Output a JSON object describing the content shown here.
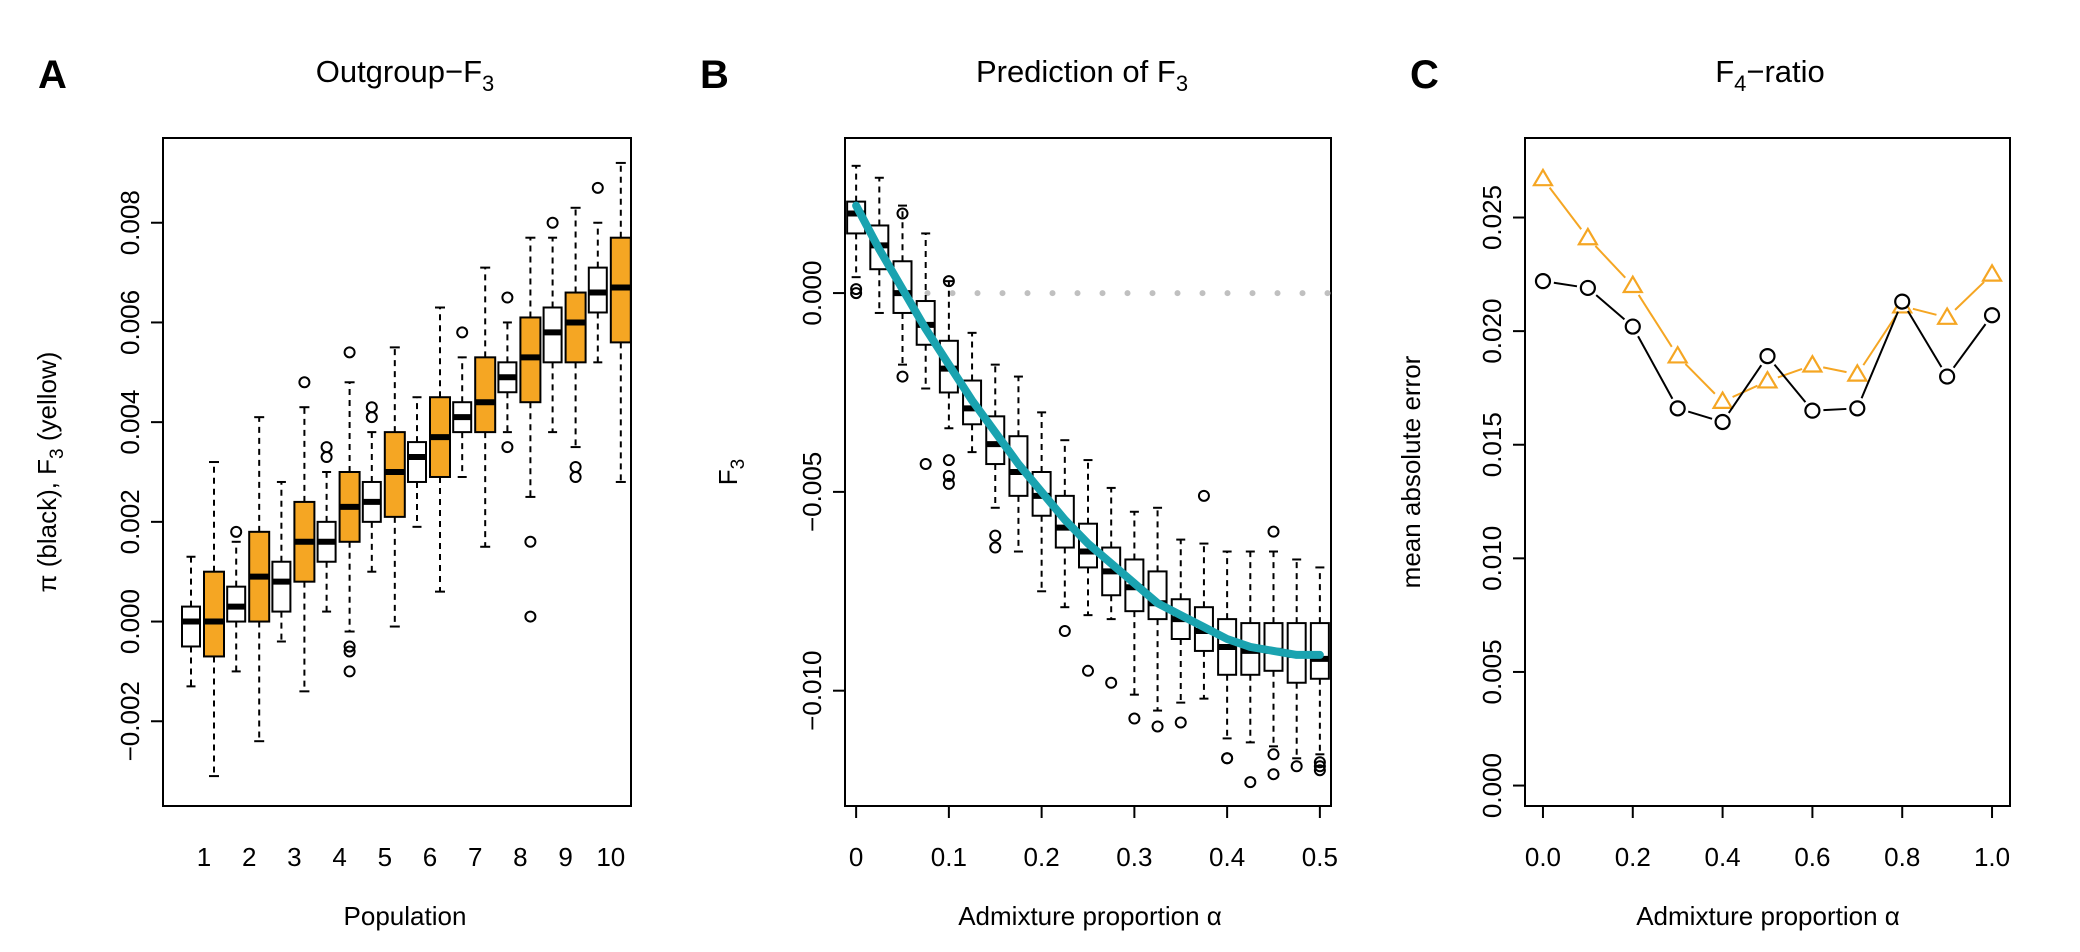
{
  "figure": {
    "colors": {
      "ink": "#000000",
      "box_fill_white": "#ffffff",
      "box_fill_yellow": "#f5a623",
      "curve": "#1aa3b0",
      "zero_line": "#c0c0c0",
      "triangle_series": "#f5a623"
    }
  },
  "chart_data": [
    {
      "panel": "A",
      "type": "box",
      "title": "Outgroup−F",
      "title_sub": "3",
      "xlabel": "Population",
      "ylabel": "π (black), F",
      "ylabel_sub": "3",
      "ylabel_tail": " (yellow)",
      "ylim": [
        -0.0037,
        0.0097
      ],
      "y_ticks": [
        -0.002,
        0.0,
        0.002,
        0.004,
        0.006,
        0.008
      ],
      "y_tick_labels": [
        "−0.002",
        "0.000",
        "0.002",
        "0.004",
        "0.006",
        "0.008"
      ],
      "categories": [
        "1",
        "2",
        "3",
        "4",
        "5",
        "6",
        "7",
        "8",
        "9",
        "10"
      ],
      "series": [
        {
          "name": "π (black)",
          "fill": "white",
          "boxes": [
            {
              "min": -0.0013,
              "q1": -0.0005,
              "median": 0.0,
              "q3": 0.0003,
              "max": 0.0013,
              "outliers": []
            },
            {
              "min": -0.001,
              "q1": 0.0,
              "median": 0.0003,
              "q3": 0.0007,
              "max": 0.0016,
              "outliers": [
                0.0018
              ]
            },
            {
              "min": -0.0004,
              "q1": 0.0002,
              "median": 0.0008,
              "q3": 0.0012,
              "max": 0.0028,
              "outliers": []
            },
            {
              "min": 0.0002,
              "q1": 0.0012,
              "median": 0.0016,
              "q3": 0.002,
              "max": 0.003,
              "outliers": [
                0.0033,
                0.0035
              ]
            },
            {
              "min": 0.001,
              "q1": 0.002,
              "median": 0.0024,
              "q3": 0.0028,
              "max": 0.0038,
              "outliers": [
                0.0041,
                0.0043
              ]
            },
            {
              "min": 0.0019,
              "q1": 0.0028,
              "median": 0.0033,
              "q3": 0.0036,
              "max": 0.0045,
              "outliers": []
            },
            {
              "min": 0.0029,
              "q1": 0.0038,
              "median": 0.0041,
              "q3": 0.0044,
              "max": 0.0053,
              "outliers": [
                0.0058
              ]
            },
            {
              "min": 0.0038,
              "q1": 0.0046,
              "median": 0.0049,
              "q3": 0.0052,
              "max": 0.006,
              "outliers": [
                0.0035,
                0.0065
              ]
            },
            {
              "min": 0.0038,
              "q1": 0.0052,
              "median": 0.0058,
              "q3": 0.0063,
              "max": 0.0077,
              "outliers": [
                0.008
              ]
            },
            {
              "min": 0.0052,
              "q1": 0.0062,
              "median": 0.0066,
              "q3": 0.0071,
              "max": 0.008,
              "outliers": [
                0.0087
              ]
            }
          ]
        },
        {
          "name": "F3 (yellow)",
          "fill": "yellow",
          "boxes": [
            {
              "min": -0.0031,
              "q1": -0.0007,
              "median": 0.0,
              "q3": 0.001,
              "max": 0.0032,
              "outliers": []
            },
            {
              "min": -0.0024,
              "q1": 0.0,
              "median": 0.0009,
              "q3": 0.0018,
              "max": 0.0041,
              "outliers": []
            },
            {
              "min": -0.0014,
              "q1": 0.0008,
              "median": 0.0016,
              "q3": 0.0024,
              "max": 0.0043,
              "outliers": [
                0.0048
              ]
            },
            {
              "min": -0.0002,
              "q1": 0.0016,
              "median": 0.0023,
              "q3": 0.003,
              "max": 0.0048,
              "outliers": [
                -0.001,
                -0.0006,
                -0.0005,
                0.0054
              ]
            },
            {
              "min": -0.0001,
              "q1": 0.0021,
              "median": 0.003,
              "q3": 0.0038,
              "max": 0.0055,
              "outliers": []
            },
            {
              "min": 0.0006,
              "q1": 0.0029,
              "median": 0.0037,
              "q3": 0.0045,
              "max": 0.0063,
              "outliers": []
            },
            {
              "min": 0.0015,
              "q1": 0.0038,
              "median": 0.0044,
              "q3": 0.0053,
              "max": 0.0071,
              "outliers": []
            },
            {
              "min": 0.0025,
              "q1": 0.0044,
              "median": 0.0053,
              "q3": 0.0061,
              "max": 0.0077,
              "outliers": [
                0.0001,
                0.0016
              ]
            },
            {
              "min": 0.0035,
              "q1": 0.0052,
              "median": 0.006,
              "q3": 0.0066,
              "max": 0.0083,
              "outliers": [
                0.0029,
                0.0031
              ]
            },
            {
              "min": 0.0028,
              "q1": 0.0056,
              "median": 0.0067,
              "q3": 0.0077,
              "max": 0.0092,
              "outliers": []
            }
          ]
        }
      ]
    },
    {
      "panel": "B",
      "type": "box",
      "title": "Prediction of F",
      "title_sub": "3",
      "xlabel": "Admixture proportion  α",
      "ylabel": "F",
      "ylabel_sub": "3",
      "xlim": [
        -0.012,
        0.512
      ],
      "ylim": [
        -0.0129,
        0.0039
      ],
      "x_ticks": [
        0,
        0.1,
        0.2,
        0.3,
        0.4,
        0.5
      ],
      "x_tick_labels": [
        "0",
        "0.1",
        "0.2",
        "0.3",
        "0.4",
        "0.5"
      ],
      "y_ticks": [
        -0.01,
        -0.005,
        0.0
      ],
      "y_tick_labels": [
        "−0.010",
        "−0.005",
        "0.000"
      ],
      "x": [
        0.0,
        0.025,
        0.05,
        0.075,
        0.1,
        0.125,
        0.15,
        0.175,
        0.2,
        0.225,
        0.25,
        0.275,
        0.3,
        0.325,
        0.35,
        0.375,
        0.4,
        0.425,
        0.45,
        0.475,
        0.5
      ],
      "boxes": [
        {
          "min": 0.0004,
          "q1": 0.0015,
          "median": 0.002,
          "q3": 0.0023,
          "max": 0.0032,
          "outliers": [
            0.0,
            0.0001
          ]
        },
        {
          "min": -0.0005,
          "q1": 0.0006,
          "median": 0.0012,
          "q3": 0.0017,
          "max": 0.0029,
          "outliers": []
        },
        {
          "min": -0.0018,
          "q1": -0.0005,
          "median": 0.0,
          "q3": 0.0008,
          "max": 0.0022,
          "outliers": [
            -0.0021,
            0.002
          ]
        },
        {
          "min": -0.0024,
          "q1": -0.0013,
          "median": -0.0008,
          "q3": -0.0002,
          "max": 0.0015,
          "outliers": [
            -0.0043
          ]
        },
        {
          "min": -0.0034,
          "q1": -0.0025,
          "median": -0.0019,
          "q3": -0.0012,
          "max": 0.0003,
          "outliers": [
            -0.0048,
            -0.0046,
            -0.0042,
            0.0003
          ]
        },
        {
          "min": -0.004,
          "q1": -0.0033,
          "median": -0.0029,
          "q3": -0.0022,
          "max": -0.001,
          "outliers": []
        },
        {
          "min": -0.0054,
          "q1": -0.0043,
          "median": -0.0038,
          "q3": -0.0031,
          "max": -0.0018,
          "outliers": [
            -0.0064,
            -0.0061
          ]
        },
        {
          "min": -0.0065,
          "q1": -0.0051,
          "median": -0.0045,
          "q3": -0.0036,
          "max": -0.0021,
          "outliers": []
        },
        {
          "min": -0.0075,
          "q1": -0.0056,
          "median": -0.0051,
          "q3": -0.0045,
          "max": -0.003,
          "outliers": []
        },
        {
          "min": -0.0079,
          "q1": -0.0064,
          "median": -0.0059,
          "q3": -0.0051,
          "max": -0.0037,
          "outliers": [
            -0.0085
          ]
        },
        {
          "min": -0.0081,
          "q1": -0.0069,
          "median": -0.0065,
          "q3": -0.0058,
          "max": -0.0042,
          "outliers": [
            -0.0095
          ]
        },
        {
          "min": -0.0082,
          "q1": -0.0076,
          "median": -0.007,
          "q3": -0.0064,
          "max": -0.0049,
          "outliers": [
            -0.0098
          ]
        },
        {
          "min": -0.0101,
          "q1": -0.008,
          "median": -0.0074,
          "q3": -0.0067,
          "max": -0.0055,
          "outliers": [
            -0.0107
          ]
        },
        {
          "min": -0.0105,
          "q1": -0.0082,
          "median": -0.0078,
          "q3": -0.007,
          "max": -0.0054,
          "outliers": [
            -0.0109
          ]
        },
        {
          "min": -0.0103,
          "q1": -0.0087,
          "median": -0.0082,
          "q3": -0.0077,
          "max": -0.0062,
          "outliers": [
            -0.0108
          ]
        },
        {
          "min": -0.0102,
          "q1": -0.009,
          "median": -0.0085,
          "q3": -0.0079,
          "max": -0.0063,
          "outliers": [
            -0.0051
          ]
        },
        {
          "min": -0.0112,
          "q1": -0.0096,
          "median": -0.0089,
          "q3": -0.0082,
          "max": -0.0065,
          "outliers": [
            -0.0117,
            -0.0117
          ]
        },
        {
          "min": -0.0113,
          "q1": -0.0096,
          "median": -0.009,
          "q3": -0.0083,
          "max": -0.0065,
          "outliers": [
            -0.0123
          ]
        },
        {
          "min": -0.0114,
          "q1": -0.0095,
          "median": -0.009,
          "q3": -0.0083,
          "max": -0.0065,
          "outliers": [
            -0.0121,
            -0.0116,
            -0.006
          ]
        },
        {
          "min": -0.0117,
          "q1": -0.0098,
          "median": -0.0091,
          "q3": -0.0083,
          "max": -0.0067,
          "outliers": [
            -0.0119
          ]
        },
        {
          "min": -0.0116,
          "q1": -0.0097,
          "median": -0.0092,
          "q3": -0.0083,
          "max": -0.0069,
          "outliers": [
            -0.012,
            -0.0119,
            -0.0118
          ]
        }
      ],
      "curve": {
        "x": [
          0.0,
          0.025,
          0.05,
          0.075,
          0.1,
          0.125,
          0.15,
          0.175,
          0.2,
          0.225,
          0.25,
          0.275,
          0.3,
          0.325,
          0.35,
          0.375,
          0.4,
          0.425,
          0.45,
          0.475,
          0.5
        ],
        "y": [
          0.0022,
          0.0011,
          0.0001,
          -0.0009,
          -0.0018,
          -0.0027,
          -0.0035,
          -0.0043,
          -0.005,
          -0.0057,
          -0.0063,
          -0.0068,
          -0.0073,
          -0.0078,
          -0.0081,
          -0.0084,
          -0.0087,
          -0.0089,
          -0.009,
          -0.0091,
          -0.0091
        ]
      },
      "reference_line": 0.0
    },
    {
      "panel": "C",
      "type": "line",
      "title": "F",
      "title_sub": "4",
      "title_tail": "−ratio",
      "xlabel": "Admixture proportion  α",
      "ylabel": "mean absolute error",
      "xlim": [
        -0.04,
        1.04
      ],
      "ylim": [
        -0.0009,
        0.0285
      ],
      "x_ticks": [
        0.0,
        0.2,
        0.4,
        0.6,
        0.8,
        1.0
      ],
      "x_tick_labels": [
        "0.0",
        "0.2",
        "0.4",
        "0.6",
        "0.8",
        "1.0"
      ],
      "y_ticks": [
        0.0,
        0.005,
        0.01,
        0.015,
        0.02,
        0.025
      ],
      "y_tick_labels": [
        "0.000",
        "0.005",
        "0.010",
        "0.015",
        "0.020",
        "0.025"
      ],
      "x": [
        0.0,
        0.1,
        0.2,
        0.3,
        0.4,
        0.5,
        0.6,
        0.7,
        0.8,
        0.9,
        1.0
      ],
      "series": [
        {
          "marker": "triangle",
          "values": [
            0.0267,
            0.0241,
            0.022,
            0.0189,
            0.0169,
            0.0178,
            0.0185,
            0.0181,
            0.0211,
            0.0206,
            0.0225
          ]
        },
        {
          "marker": "circle",
          "values": [
            0.0222,
            0.0219,
            0.0202,
            0.0166,
            0.016,
            0.0189,
            0.0165,
            0.0166,
            0.0213,
            0.018,
            0.0207
          ]
        }
      ]
    }
  ]
}
